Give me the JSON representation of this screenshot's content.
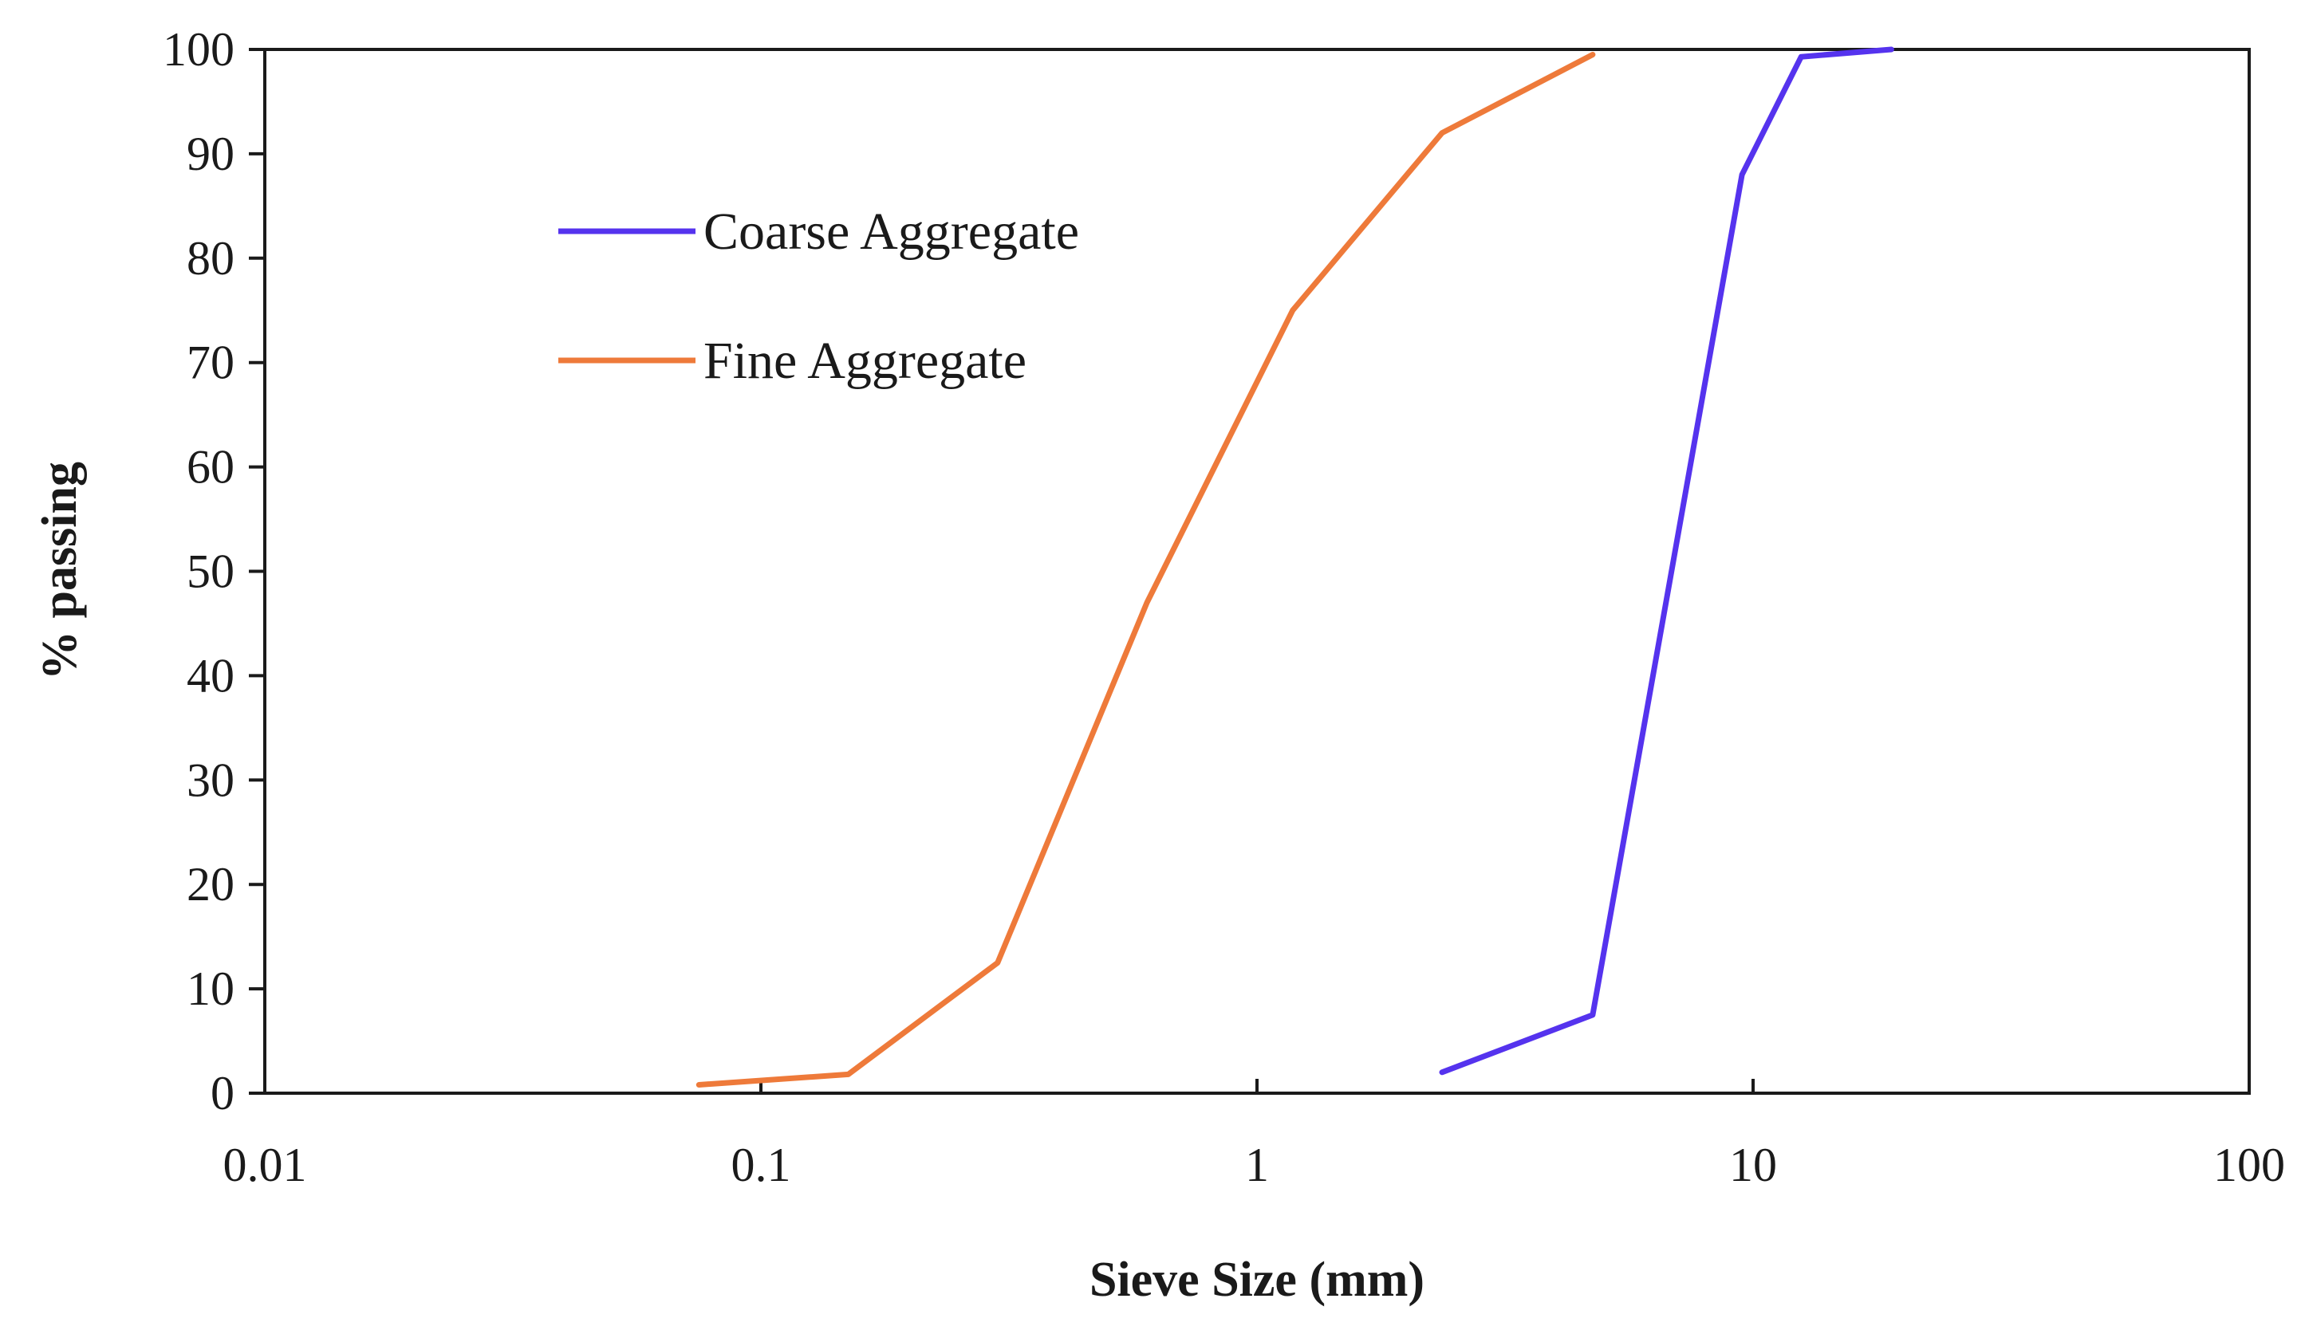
{
  "chart_data": {
    "type": "line",
    "title": "",
    "xlabel": "Sieve Size (mm)",
    "ylabel": "% passing",
    "x_scale": "log",
    "xlim": [
      0.01,
      100
    ],
    "ylim": [
      0,
      100
    ],
    "x_ticks": [
      "0.01",
      "0.1",
      "1",
      "10",
      "100"
    ],
    "y_ticks": [
      "0",
      "10",
      "20",
      "30",
      "40",
      "50",
      "60",
      "70",
      "80",
      "90",
      "100"
    ],
    "grid": false,
    "legend_position": "upper-left inside",
    "series": [
      {
        "name": "Coarse Aggregate",
        "color": "#5533ee",
        "x": [
          2.36,
          4.75,
          9.5,
          12.5,
          19
        ],
        "y": [
          2,
          7.5,
          88,
          99.3,
          100
        ]
      },
      {
        "name": "Fine Aggregate",
        "color": "#ee7a3a",
        "x": [
          0.075,
          0.15,
          0.3,
          0.6,
          1.18,
          2.36,
          4.75
        ],
        "y": [
          0.8,
          1.8,
          12.5,
          47,
          75,
          92,
          99.5
        ]
      }
    ]
  }
}
